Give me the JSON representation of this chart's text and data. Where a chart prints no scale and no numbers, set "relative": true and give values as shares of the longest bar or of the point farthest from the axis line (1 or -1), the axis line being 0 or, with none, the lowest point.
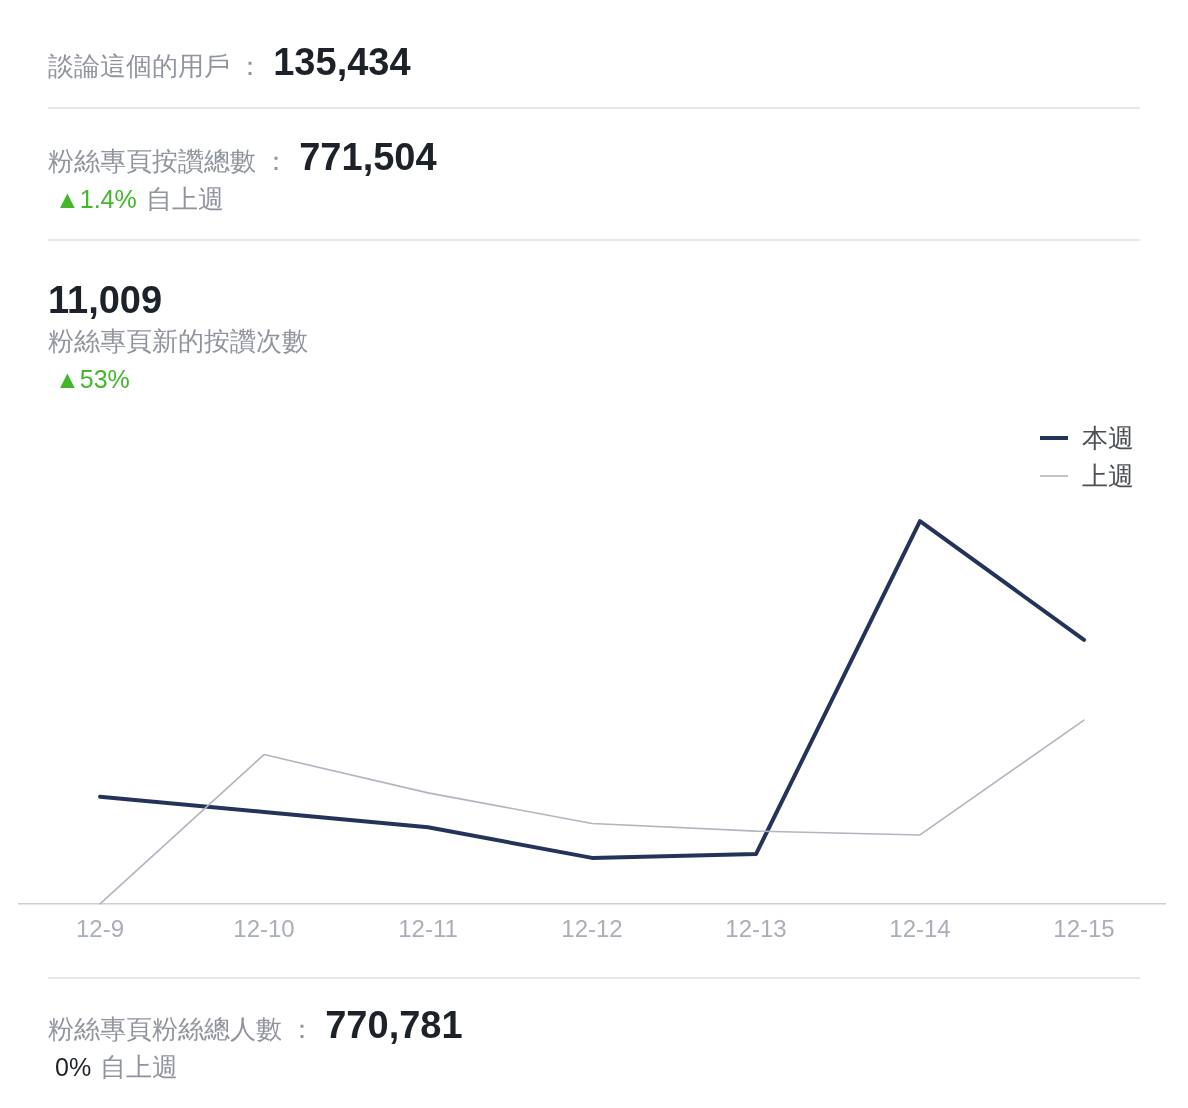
{
  "chart_data": [
    {
      "type": "other",
      "annotations": [
        "談論這個的用戶 ：",
        "135,434"
      ],
      "colors": [
        "#90949c",
        "#1d2129"
      ]
    },
    {
      "type": "other",
      "annotations": [
        "粉絲專頁按讚總數 ：",
        "771,504",
        "▲1.4%",
        "自上週"
      ],
      "colors": [
        "#90949c",
        "#1d2129",
        "#42b72a",
        "#90949c"
      ]
    },
    {
      "type": "line",
      "title": "11,009",
      "subtitle": "粉絲專頁新的按讚次數",
      "annotations": [
        "▲53%"
      ],
      "categories": [
        "12-9",
        "12-10",
        "12-11",
        "12-12",
        "12-13",
        "12-14",
        "12-15"
      ],
      "relative": true,
      "legend": "top right",
      "series": [
        {
          "name": "本週",
          "color": "#23335a",
          "values": [
            0.28,
            0.24,
            0.2,
            0.12,
            0.13,
            1,
            0.69
          ]
        },
        {
          "name": "上週",
          "color": "#b1b5bf",
          "values": [
            0,
            0.39,
            0.29,
            0.21,
            0.19,
            0.18,
            0.48
          ]
        }
      ]
    },
    {
      "type": "other",
      "annotations": [
        "粉絲專頁粉絲總人數 ：",
        "770,781",
        "0%",
        "自上週"
      ],
      "colors": [
        "#90949c",
        "#1d2129",
        "#1d2129",
        "#90949c"
      ]
    }
  ]
}
